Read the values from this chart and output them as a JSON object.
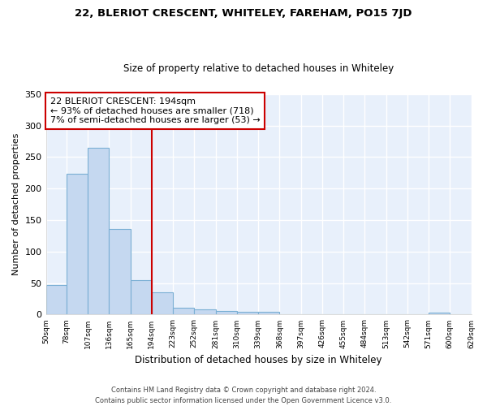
{
  "title1": "22, BLERIOT CRESCENT, WHITELEY, FAREHAM, PO15 7JD",
  "title2": "Size of property relative to detached houses in Whiteley",
  "xlabel": "Distribution of detached houses by size in Whiteley",
  "ylabel": "Number of detached properties",
  "footer1": "Contains HM Land Registry data © Crown copyright and database right 2024.",
  "footer2": "Contains public sector information licensed under the Open Government Licence v3.0.",
  "annotation_line1": "22 BLERIOT CRESCENT: 194sqm",
  "annotation_line2": "← 93% of detached houses are smaller (718)",
  "annotation_line3": "7% of semi-detached houses are larger (53) →",
  "property_size": 194,
  "bin_edges": [
    50,
    78,
    107,
    136,
    165,
    194,
    223,
    252,
    281,
    310,
    339,
    368,
    397,
    426,
    455,
    484,
    513,
    542,
    571,
    600,
    629
  ],
  "bar_heights": [
    47,
    223,
    265,
    136,
    55,
    35,
    11,
    8,
    6,
    4,
    4,
    0,
    0,
    0,
    0,
    0,
    0,
    0,
    3,
    0
  ],
  "bar_color": "#c5d8f0",
  "bar_edge_color": "#7aafd4",
  "vline_color": "#cc0000",
  "background_color": "#ffffff",
  "plot_bg_color": "#e8f0fb",
  "grid_color": "#ffffff",
  "annotation_box_edge": "#cc0000",
  "ylim": [
    0,
    350
  ],
  "yticks": [
    0,
    50,
    100,
    150,
    200,
    250,
    300,
    350
  ]
}
